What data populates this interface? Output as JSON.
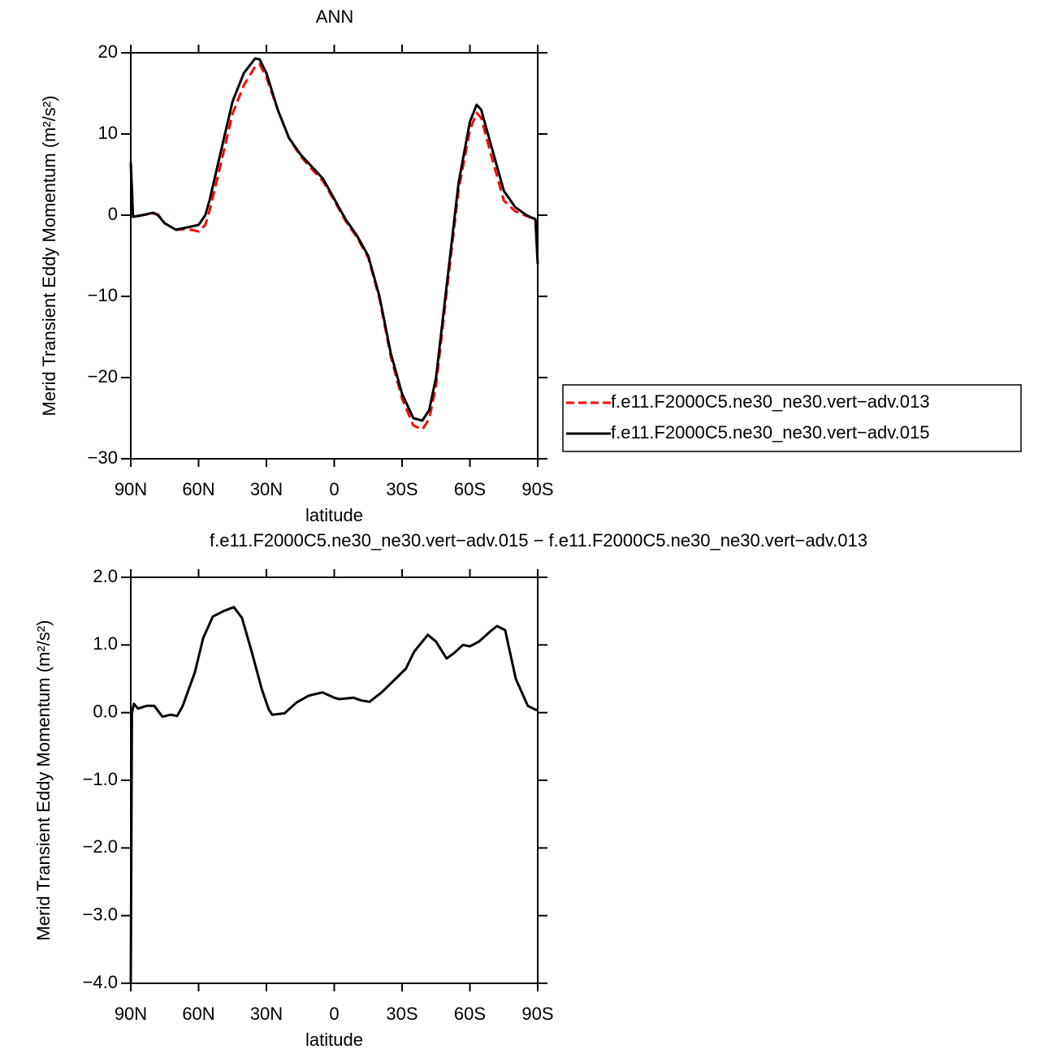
{
  "chart_data": [
    {
      "type": "line",
      "title": "ANN",
      "xlabel": "latitude",
      "ylabel": "Merid Transient Eddy Momentum (m²/s²)",
      "xlim": [
        90,
        -90
      ],
      "ylim": [
        -30,
        20
      ],
      "xticks": [
        {
          "value": 90,
          "label": "90N"
        },
        {
          "value": 60,
          "label": "60N"
        },
        {
          "value": 30,
          "label": "30N"
        },
        0,
        {
          "value": -30,
          "label": "30S"
        },
        {
          "value": -60,
          "label": "60S"
        },
        {
          "value": -90,
          "label": "90S"
        }
      ],
      "yticks": [
        {
          "value": 20,
          "label": "20"
        },
        {
          "value": 10,
          "label": "10"
        },
        0,
        {
          "value": -10,
          "label": "−10"
        },
        {
          "value": -20,
          "label": "−20"
        },
        {
          "value": -30,
          "label": "−30"
        }
      ],
      "legend": "right",
      "x": [
        90,
        89,
        85,
        80,
        78,
        75,
        70,
        65,
        60,
        57,
        55,
        50,
        45,
        40,
        35,
        33,
        30,
        25,
        20,
        15,
        10,
        5,
        0,
        -5,
        -10,
        -15,
        -20,
        -25,
        -30,
        -35,
        -39,
        -42,
        -45,
        -50,
        -55,
        -60,
        -63,
        -65,
        -70,
        -75,
        -80,
        -85,
        -89,
        -90
      ],
      "series": [
        {
          "name": "f.e11.F2000C5.ne30_ne30.vert−adv.013",
          "color": "#ff0000",
          "dash": true,
          "values": [
            6.3,
            -0.3,
            0,
            0.2,
            0.1,
            -1,
            -1.8,
            -1.7,
            -2.0,
            -1.2,
            0.7,
            6.5,
            12.5,
            16,
            18.3,
            18.6,
            17,
            13,
            9.5,
            7.3,
            5.7,
            4.2,
            1.8,
            -0.7,
            -2.7,
            -5.2,
            -10.3,
            -17.4,
            -22.6,
            -25.9,
            -26.4,
            -25.1,
            -21,
            -8.8,
            3.1,
            10.5,
            12.6,
            12.0,
            6.8,
            1.8,
            0.5,
            -0.1,
            -0.5,
            -6
          ]
        },
        {
          "name": "f.e11.F2000C5.ne30_ne30.vert−adv.015",
          "color": "#000000",
          "dash": false,
          "values": [
            6.5,
            -0.2,
            0,
            0.3,
            0,
            -1,
            -1.8,
            -1.5,
            -1.2,
            0,
            2,
            8,
            14,
            17.5,
            19.3,
            19.2,
            17.5,
            13,
            9.5,
            7.5,
            6,
            4.5,
            2,
            -0.5,
            -2.5,
            -5,
            -10,
            -17,
            -22,
            -25,
            -25.3,
            -24,
            -20,
            -8,
            4,
            11.5,
            13.6,
            13,
            8,
            3,
            1,
            0,
            -0.5,
            -6
          ]
        }
      ]
    },
    {
      "type": "line",
      "title": "f.e11.F2000C5.ne30_ne30.vert−adv.015 − f.e11.F2000C5.ne30_ne30.vert−adv.013",
      "xlabel": "latitude",
      "ylabel": "Merid Transient Eddy Momentum (m²/s²)",
      "xlim": [
        90,
        -90
      ],
      "ylim": [
        -4,
        2
      ],
      "xticks": [
        {
          "value": 90,
          "label": "90N"
        },
        {
          "value": 60,
          "label": "60N"
        },
        {
          "value": 30,
          "label": "30N"
        },
        0,
        {
          "value": -30,
          "label": "30S"
        },
        {
          "value": -60,
          "label": "60S"
        },
        {
          "value": -90,
          "label": "90S"
        }
      ],
      "yticks": [
        {
          "value": 2,
          "label": "2.0"
        },
        {
          "value": 1,
          "label": "1.0"
        },
        {
          "value": 0,
          "label": "0.0"
        },
        {
          "value": -1,
          "label": "−1.0"
        },
        {
          "value": -2,
          "label": "−2.0"
        },
        {
          "value": -3,
          "label": "−3.0"
        },
        {
          "value": -4,
          "label": "−4.0"
        }
      ],
      "x": [
        90,
        89.5,
        88.6,
        86.8,
        83,
        79.6,
        76,
        72.4,
        69.5,
        67,
        61.6,
        58,
        53.7,
        49,
        44.4,
        40.8,
        36.5,
        32.1,
        29,
        27.5,
        22,
        16.7,
        11.3,
        5.2,
        0,
        -2.3,
        -8.5,
        -12,
        -15.6,
        -21,
        -27.1,
        -31.7,
        -35.3,
        -41.4,
        -45,
        -49.7,
        -53,
        -56.9,
        -60,
        -64,
        -69,
        -72,
        -75.6,
        -80.3,
        -85.6,
        -89.2,
        -90
      ],
      "series": [
        {
          "color": "#000000",
          "dash": false,
          "values": [
            -4.0,
            0.0,
            0.13,
            0.06,
            0.1,
            0.1,
            -0.06,
            -0.03,
            -0.05,
            0.1,
            0.6,
            1.1,
            1.42,
            1.5,
            1.56,
            1.4,
            0.9,
            0.35,
            0.05,
            -0.03,
            -0.01,
            0.15,
            0.25,
            0.3,
            0.22,
            0.2,
            0.22,
            0.18,
            0.16,
            0.3,
            0.5,
            0.65,
            0.9,
            1.15,
            1.05,
            0.8,
            0.88,
            1.0,
            0.98,
            1.05,
            1.2,
            1.28,
            1.22,
            0.5,
            0.1,
            0.04,
            0.04
          ]
        }
      ]
    }
  ]
}
